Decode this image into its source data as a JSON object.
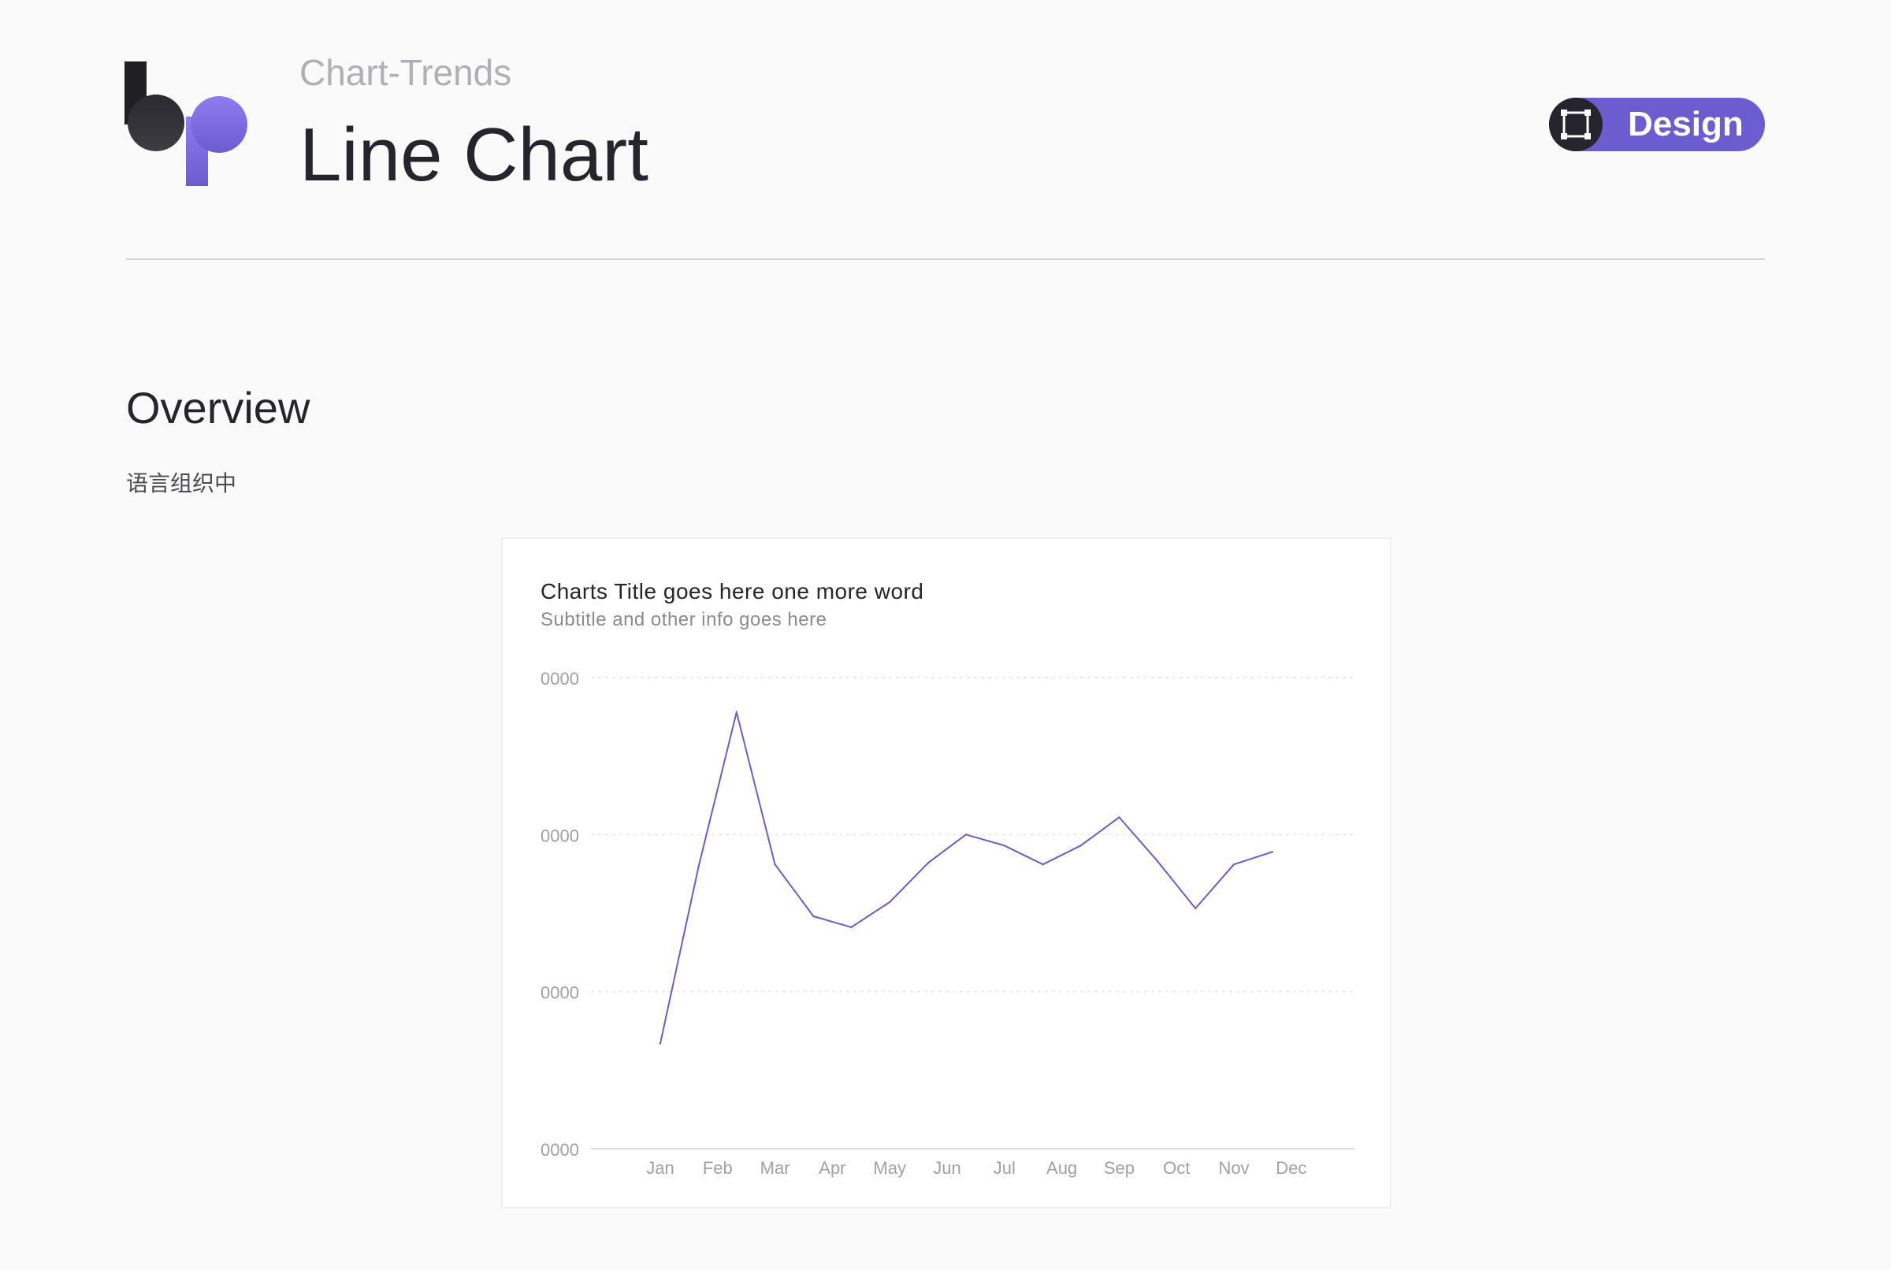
{
  "header": {
    "kicker": "Chart-Trends",
    "title": "Line Chart",
    "badge_label": "Design",
    "badge_icon": "frame-icon",
    "logo_icon": "bp-logo"
  },
  "overview": {
    "heading": "Overview",
    "text": "语言组织中"
  },
  "colors": {
    "accent": "#6b5ccf",
    "dark": "#26252e",
    "background": "#fafafa"
  },
  "chart_data": {
    "type": "line",
    "title": "Charts Title goes here one more word",
    "subtitle": "Subtitle and other info goes here",
    "categories": [
      "Jan",
      "Feb",
      "Mar",
      "Apr",
      "May",
      "Jun",
      "Jul",
      "Aug",
      "Sep",
      "Oct",
      "Nov",
      "Dec"
    ],
    "y_tick_labels": [
      "0000",
      "0000",
      "0000",
      "0000"
    ],
    "ylim": [
      0,
      300
    ],
    "grid": true,
    "series": [
      {
        "color": "#6b5ccf",
        "points": [
          {
            "x": 0.0,
            "y": 67
          },
          {
            "x": 0.67,
            "y": 180
          },
          {
            "x": 1.33,
            "y": 278
          },
          {
            "x": 2.0,
            "y": 181
          },
          {
            "x": 2.67,
            "y": 148
          },
          {
            "x": 3.33,
            "y": 141
          },
          {
            "x": 4.0,
            "y": 157
          },
          {
            "x": 4.67,
            "y": 182
          },
          {
            "x": 5.33,
            "y": 200
          },
          {
            "x": 6.0,
            "y": 193
          },
          {
            "x": 6.67,
            "y": 181
          },
          {
            "x": 7.33,
            "y": 193
          },
          {
            "x": 8.0,
            "y": 211
          },
          {
            "x": 8.67,
            "y": 183
          },
          {
            "x": 9.33,
            "y": 153
          },
          {
            "x": 10.0,
            "y": 181
          },
          {
            "x": 10.67,
            "y": 189
          }
        ]
      }
    ]
  }
}
